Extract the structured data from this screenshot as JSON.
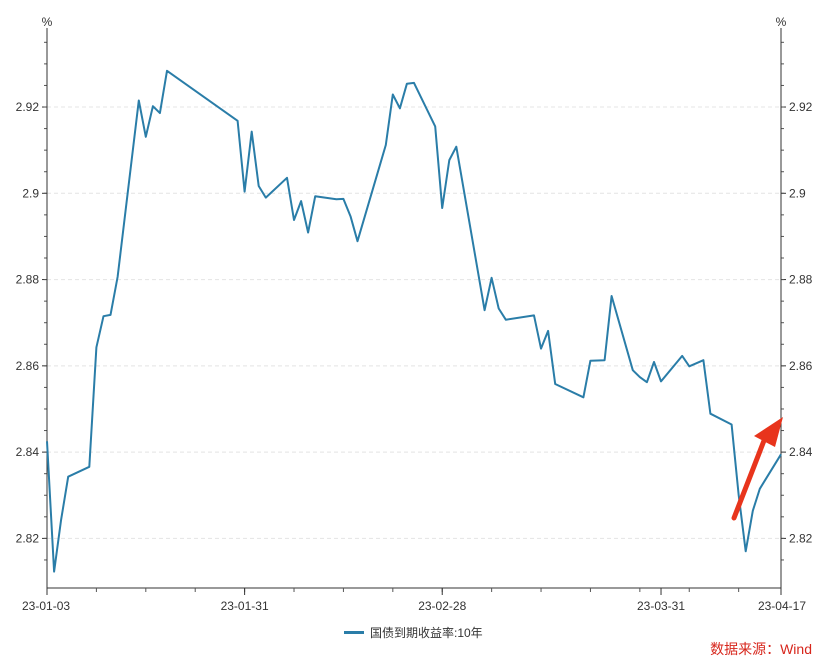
{
  "chart_data": {
    "type": "line",
    "title": "",
    "ylabel_left": "%",
    "ylabel_right": "%",
    "x_ticks": [
      "23-01-03",
      "23-01-31",
      "23-02-28",
      "23-03-31",
      "23-04-17"
    ],
    "x_tick_days": [
      0,
      28,
      56,
      87,
      104
    ],
    "y_ticks": [
      "2.82",
      "2.84",
      "2.86",
      "2.88",
      "2.9",
      "2.92"
    ],
    "ylim": [
      2.8085,
      2.936
    ],
    "grid": true,
    "legend_position": "bottom",
    "series": [
      {
        "name": "国债到期收益率:10年",
        "color": "#2a7da8",
        "points": [
          [
            "23-01-03",
            2.8425
          ],
          [
            "23-01-04",
            2.8123
          ],
          [
            "23-01-05",
            2.8243
          ],
          [
            "23-01-06",
            2.8343
          ],
          [
            "23-01-09",
            2.8366
          ],
          [
            "23-01-10",
            2.8643
          ],
          [
            "23-01-11",
            2.8715
          ],
          [
            "23-01-12",
            2.8718
          ],
          [
            "23-01-13",
            2.8806
          ],
          [
            "23-01-16",
            2.9215
          ],
          [
            "23-01-17",
            2.9131
          ],
          [
            "23-01-18",
            2.9202
          ],
          [
            "23-01-19",
            2.9186
          ],
          [
            "23-01-20",
            2.9284
          ],
          [
            "23-01-30",
            2.9168
          ],
          [
            "23-01-31",
            2.9004
          ],
          [
            "23-02-01",
            2.9143
          ],
          [
            "23-02-02",
            2.9017
          ],
          [
            "23-02-03",
            2.899
          ],
          [
            "23-02-06",
            2.9036
          ],
          [
            "23-02-07",
            2.8938
          ],
          [
            "23-02-08",
            2.8982
          ],
          [
            "23-02-09",
            2.8909
          ],
          [
            "23-02-10",
            2.8993
          ],
          [
            "23-02-13",
            2.8986
          ],
          [
            "23-02-14",
            2.8987
          ],
          [
            "23-02-15",
            2.8947
          ],
          [
            "23-02-16",
            2.8889
          ],
          [
            "23-02-20",
            2.9112
          ],
          [
            "23-02-21",
            2.9229
          ],
          [
            "23-02-22",
            2.9197
          ],
          [
            "23-02-23",
            2.9254
          ],
          [
            "23-02-24",
            2.9256
          ],
          [
            "23-02-27",
            2.9155
          ],
          [
            "23-02-28",
            2.8966
          ],
          [
            "23-03-01",
            2.9077
          ],
          [
            "23-03-02",
            2.9108
          ],
          [
            "23-03-06",
            2.8729
          ],
          [
            "23-03-07",
            2.8804
          ],
          [
            "23-03-08",
            2.8733
          ],
          [
            "23-03-09",
            2.8707
          ],
          [
            "23-03-13",
            2.8717
          ],
          [
            "23-03-14",
            2.864
          ],
          [
            "23-03-15",
            2.8681
          ],
          [
            "23-03-16",
            2.8558
          ],
          [
            "23-03-20",
            2.8527
          ],
          [
            "23-03-21",
            2.8612
          ],
          [
            "23-03-23",
            2.8613
          ],
          [
            "23-03-24",
            2.8762
          ],
          [
            "23-03-27",
            2.859
          ],
          [
            "23-03-28",
            2.8574
          ],
          [
            "23-03-29",
            2.8562
          ],
          [
            "23-03-30",
            2.8609
          ],
          [
            "23-03-31",
            2.8564
          ],
          [
            "23-04-03",
            2.8623
          ],
          [
            "23-04-04",
            2.8599
          ],
          [
            "23-04-06",
            2.8613
          ],
          [
            "23-04-07",
            2.8489
          ],
          [
            "23-04-10",
            2.8464
          ],
          [
            "23-04-11",
            2.83
          ],
          [
            "23-04-12",
            2.817
          ],
          [
            "23-04-13",
            2.8264
          ],
          [
            "23-04-14",
            2.8315
          ],
          [
            "23-04-17",
            2.8395
          ]
        ]
      }
    ],
    "annotation": {
      "type": "arrow",
      "direction": "up-right",
      "color": "#e8341c"
    }
  },
  "legend": {
    "label": "国债到期收益率:10年",
    "color": "#2a7da8"
  },
  "source": {
    "text": "数据来源：Wind",
    "color": "#d7261c"
  }
}
